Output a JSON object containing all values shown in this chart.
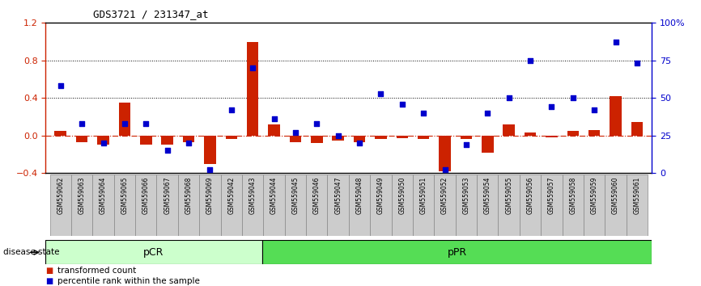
{
  "title": "GDS3721 / 231347_at",
  "samples": [
    "GSM559062",
    "GSM559063",
    "GSM559064",
    "GSM559065",
    "GSM559066",
    "GSM559067",
    "GSM559068",
    "GSM559069",
    "GSM559042",
    "GSM559043",
    "GSM559044",
    "GSM559045",
    "GSM559046",
    "GSM559047",
    "GSM559048",
    "GSM559049",
    "GSM559050",
    "GSM559051",
    "GSM559052",
    "GSM559053",
    "GSM559054",
    "GSM559055",
    "GSM559056",
    "GSM559057",
    "GSM559058",
    "GSM559059",
    "GSM559060",
    "GSM559061"
  ],
  "transformed_count": [
    0.05,
    -0.07,
    -0.1,
    0.35,
    -0.1,
    -0.1,
    -0.07,
    -0.3,
    -0.04,
    1.0,
    0.12,
    -0.07,
    -0.08,
    -0.05,
    -0.07,
    -0.04,
    -0.03,
    -0.04,
    -0.38,
    -0.04,
    -0.18,
    0.12,
    0.03,
    -0.02,
    0.05,
    0.06,
    0.42,
    0.14
  ],
  "percentile_rank": [
    58,
    33,
    20,
    33,
    33,
    15,
    20,
    2,
    42,
    70,
    36,
    27,
    33,
    25,
    20,
    53,
    46,
    40,
    2,
    19,
    40,
    50,
    75,
    44,
    50,
    42,
    87,
    73
  ],
  "pCR_count": 10,
  "bar_color": "#cc2200",
  "dot_color": "#0000cc",
  "pCR_color": "#ccffcc",
  "pPR_color": "#55dd55",
  "dotted_line_y": [
    0.8,
    0.4
  ],
  "ylim_left": [
    -0.4,
    1.2
  ],
  "ylim_right": [
    0,
    100
  ],
  "left_yticks": [
    -0.4,
    0.0,
    0.4,
    0.8,
    1.2
  ],
  "right_yticks": [
    0,
    25,
    50,
    75,
    100
  ],
  "right_yticklabels": [
    "0",
    "25",
    "50",
    "75",
    "100%"
  ],
  "legend_red": "transformed count",
  "legend_blue": "percentile rank within the sample",
  "disease_state_label": "disease state",
  "pCR_label": "pCR",
  "pPR_label": "pPR",
  "xlabel_gray": "#cccccc",
  "xlabel_gray_dark": "#aaaaaa"
}
